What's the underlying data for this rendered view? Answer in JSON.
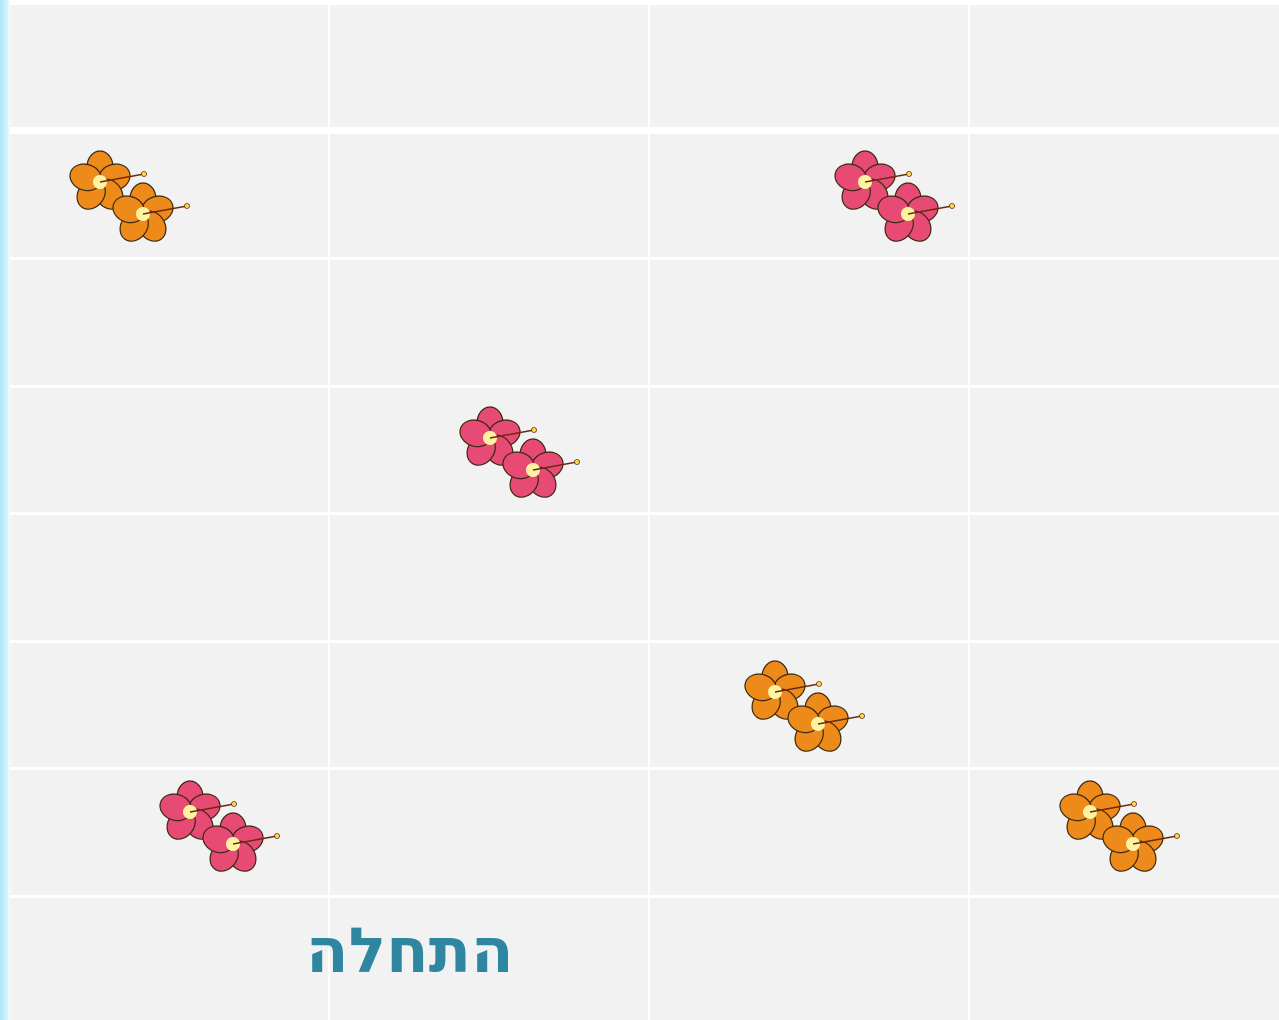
{
  "start_label": "התחלה"
}
